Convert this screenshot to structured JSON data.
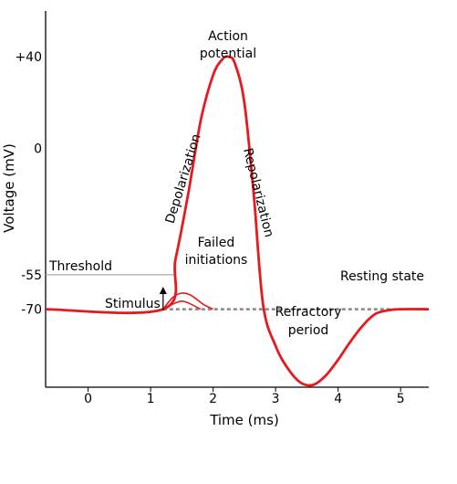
{
  "chart_data": {
    "type": "line",
    "xlabel": "Time (ms)",
    "ylabel": "Voltage (mV)",
    "xlim": [
      -0.68,
      5.45
    ],
    "ylim": [
      -104,
      60
    ],
    "x_ticks": [
      0,
      1,
      2,
      3,
      4,
      5
    ],
    "y_tick_labels": [
      {
        "value": 40,
        "label": "+40"
      },
      {
        "value": 0,
        "label": "0"
      },
      {
        "value": -55,
        "label": "-55"
      },
      {
        "value": -70,
        "label": "-70"
      }
    ],
    "grid": false,
    "series": [
      {
        "color": "#e8191e",
        "x": [
          -0.68,
          1.2,
          1.4,
          1.6,
          1.8,
          2.0,
          2.15,
          2.25,
          2.35,
          2.5,
          2.65,
          2.8,
          3.0,
          3.2,
          3.4,
          3.6,
          3.8,
          4.0,
          4.2,
          4.4,
          4.6,
          4.8,
          5.0,
          5.45
        ],
        "y": [
          -70,
          -70,
          -48,
          -20,
          12,
          32,
          39,
          40,
          37,
          20,
          -20,
          -68,
          -86,
          -96,
          -102,
          -103,
          -99,
          -92,
          -84,
          -77,
          -72,
          -70.5,
          -70,
          -70
        ]
      }
    ],
    "failed_initiations": [
      {
        "x": [
          1.2,
          1.35,
          1.5,
          1.65,
          1.85,
          2.0
        ],
        "y": [
          -70,
          -65,
          -63,
          -64,
          -68,
          -70
        ]
      },
      {
        "x": [
          1.2,
          1.38,
          1.5,
          1.62,
          1.8
        ],
        "y": [
          -70,
          -67.5,
          -66.5,
          -67.5,
          -70
        ]
      }
    ],
    "resting_state": {
      "value": -70,
      "x": [
        1.2,
        5.0
      ],
      "color": "#888888"
    },
    "threshold": {
      "value": -55,
      "x": [
        -0.68,
        1.4
      ],
      "label": "Threshold",
      "color": "#999999"
    },
    "stimulus": {
      "x": 1.2,
      "label": "Stimulus"
    },
    "annotations": [
      {
        "id": "action-potential-1",
        "text": "Action"
      },
      {
        "id": "action-potential-2",
        "text": "potential"
      },
      {
        "id": "depolarization",
        "text": "Depolarization"
      },
      {
        "id": "repolarization",
        "text": "Repolarization"
      },
      {
        "id": "failed-1",
        "text": "Failed"
      },
      {
        "id": "failed-2",
        "text": "initiations"
      },
      {
        "id": "resting",
        "text": "Resting state"
      },
      {
        "id": "refractory-1",
        "text": "Refractory"
      },
      {
        "id": "refractory-2",
        "text": "period"
      }
    ]
  }
}
